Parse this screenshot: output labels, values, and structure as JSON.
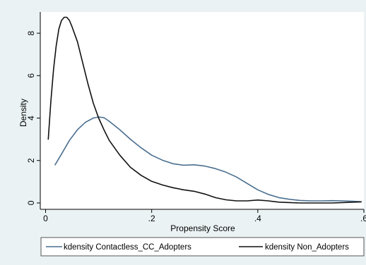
{
  "chart_data": {
    "type": "line",
    "xlabel": "Propensity Score",
    "ylabel": "Density",
    "xlim": [
      -0.01,
      0.6
    ],
    "ylim": [
      -0.3,
      9.0
    ],
    "x_ticks": [
      {
        "value": 0,
        "label": "0"
      },
      {
        "value": 0.2,
        "label": ".2"
      },
      {
        "value": 0.4,
        "label": ".4"
      },
      {
        "value": 0.6,
        "label": ".6"
      }
    ],
    "y_ticks": [
      {
        "value": 0,
        "label": "0"
      },
      {
        "value": 2,
        "label": "2"
      },
      {
        "value": 4,
        "label": "4"
      },
      {
        "value": 6,
        "label": "6"
      },
      {
        "value": 8,
        "label": "8"
      }
    ],
    "grid": false,
    "legend_position": "bottom",
    "series": [
      {
        "name": "kdensity Contactless_CC_Adopters",
        "color": "#4a6f8f",
        "points": [
          [
            0.018,
            1.8
          ],
          [
            0.03,
            2.3
          ],
          [
            0.045,
            2.95
          ],
          [
            0.06,
            3.45
          ],
          [
            0.075,
            3.8
          ],
          [
            0.09,
            4.0
          ],
          [
            0.1,
            4.05
          ],
          [
            0.11,
            4.02
          ],
          [
            0.12,
            3.85
          ],
          [
            0.14,
            3.45
          ],
          [
            0.16,
            3.0
          ],
          [
            0.18,
            2.6
          ],
          [
            0.2,
            2.25
          ],
          [
            0.22,
            2.02
          ],
          [
            0.24,
            1.85
          ],
          [
            0.26,
            1.78
          ],
          [
            0.28,
            1.8
          ],
          [
            0.3,
            1.74
          ],
          [
            0.32,
            1.62
          ],
          [
            0.34,
            1.45
          ],
          [
            0.36,
            1.22
          ],
          [
            0.38,
            0.92
          ],
          [
            0.4,
            0.62
          ],
          [
            0.42,
            0.4
          ],
          [
            0.44,
            0.25
          ],
          [
            0.46,
            0.17
          ],
          [
            0.48,
            0.12
          ],
          [
            0.5,
            0.1
          ],
          [
            0.52,
            0.1
          ],
          [
            0.54,
            0.11
          ],
          [
            0.56,
            0.1
          ],
          [
            0.58,
            0.08
          ],
          [
            0.595,
            0.06
          ]
        ]
      },
      {
        "name": "kdensity Non_Adopters",
        "color": "#111111",
        "points": [
          [
            0.005,
            3.0
          ],
          [
            0.01,
            4.8
          ],
          [
            0.015,
            6.3
          ],
          [
            0.02,
            7.4
          ],
          [
            0.025,
            8.2
          ],
          [
            0.03,
            8.6
          ],
          [
            0.035,
            8.75
          ],
          [
            0.04,
            8.75
          ],
          [
            0.045,
            8.6
          ],
          [
            0.05,
            8.3
          ],
          [
            0.06,
            7.6
          ],
          [
            0.07,
            6.6
          ],
          [
            0.08,
            5.6
          ],
          [
            0.09,
            4.7
          ],
          [
            0.1,
            4.0
          ],
          [
            0.11,
            3.45
          ],
          [
            0.12,
            2.95
          ],
          [
            0.14,
            2.25
          ],
          [
            0.16,
            1.68
          ],
          [
            0.18,
            1.3
          ],
          [
            0.2,
            1.02
          ],
          [
            0.22,
            0.85
          ],
          [
            0.24,
            0.72
          ],
          [
            0.26,
            0.62
          ],
          [
            0.28,
            0.55
          ],
          [
            0.3,
            0.42
          ],
          [
            0.32,
            0.25
          ],
          [
            0.34,
            0.15
          ],
          [
            0.36,
            0.1
          ],
          [
            0.38,
            0.1
          ],
          [
            0.4,
            0.14
          ],
          [
            0.42,
            0.1
          ],
          [
            0.44,
            0.04
          ],
          [
            0.46,
            0.02
          ],
          [
            0.48,
            0.0
          ],
          [
            0.5,
            0.0
          ],
          [
            0.52,
            0.0
          ],
          [
            0.54,
            0.0
          ],
          [
            0.56,
            0.02
          ],
          [
            0.58,
            0.04
          ],
          [
            0.595,
            0.05
          ]
        ]
      }
    ]
  }
}
